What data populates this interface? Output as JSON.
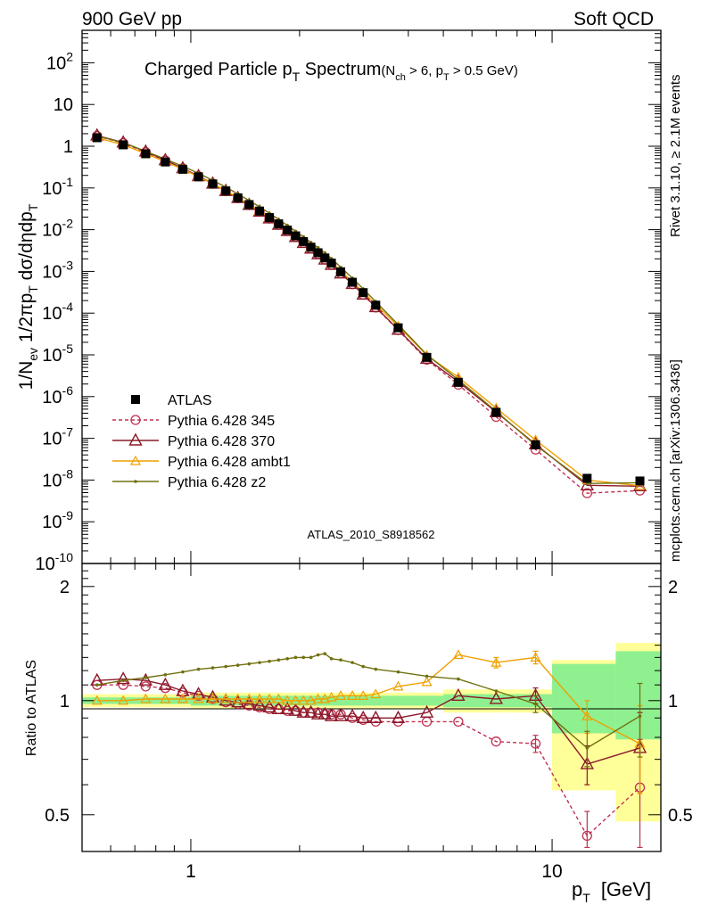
{
  "header": {
    "left": "900 GeV pp",
    "right": "Soft QCD"
  },
  "side_labels": {
    "rivet": "Rivet 3.1.10, ≥ 2.1M events",
    "source": "mcplots.cern.ch [arXiv:1306.3436]"
  },
  "main": {
    "title": {
      "part1": "Charged Particle p",
      "sub1": "T",
      "part2": " Spectrum",
      "cut_a": "(N",
      "cut_sub_a": "ch",
      "cut_b": " > 6, p",
      "cut_sub_b": "T",
      "cut_c": " > 0.5 GeV)"
    },
    "ylabel": {
      "a": "1/N",
      "sub_a": "ev",
      "b": " 1/2πp",
      "sub_b": "T",
      "c": " dσ/dηdp",
      "sub_c": "T"
    },
    "watermark": "ATLAS_2010_S8918562",
    "y_ticks": [
      {
        "exp": -10,
        "label": "10^-10"
      },
      {
        "exp": -9,
        "label": "10^-9"
      },
      {
        "exp": -8,
        "label": "10^-8"
      },
      {
        "exp": -7,
        "label": "10^-7"
      },
      {
        "exp": -6,
        "label": "10^-6"
      },
      {
        "exp": -5,
        "label": "10^-5"
      },
      {
        "exp": -4,
        "label": "10^-4"
      },
      {
        "exp": -3,
        "label": "10^-3"
      },
      {
        "exp": -2,
        "label": "10^-2"
      },
      {
        "exp": -1,
        "label": "10^-1"
      },
      {
        "exp": 0,
        "label": "1"
      },
      {
        "exp": 1,
        "label": "10"
      },
      {
        "exp": 2,
        "label": "10^2"
      }
    ]
  },
  "ratio": {
    "ylabel": "Ratio to ATLAS",
    "y_ticks": [
      "0.5",
      "1",
      "2"
    ]
  },
  "x_axis": {
    "label": "p",
    "label_sub": "T",
    "unit": "[GeV]",
    "ticks": [
      "1",
      "10"
    ]
  },
  "legend": [
    {
      "name": "ATLAS",
      "color": "#000000",
      "marker": "square"
    },
    {
      "name": "Pythia 6.428 345",
      "color": "#c03050",
      "marker": "circle",
      "dashed": true
    },
    {
      "name": "Pythia 6.428 370",
      "color": "#8b1a2a",
      "marker": "triangle"
    },
    {
      "name": "Pythia 6.428 ambt1",
      "color": "#f0a000",
      "marker": "triangle-small"
    },
    {
      "name": "Pythia 6.428 z2",
      "color": "#707010",
      "marker": "dot"
    }
  ],
  "chart_data": {
    "type": "line",
    "xscale": "log",
    "xlim": [
      0.5,
      20
    ],
    "main_ylim": [
      1e-10,
      600
    ],
    "ratio_ylim": [
      0.4,
      2.3
    ],
    "x": [
      0.55,
      0.65,
      0.75,
      0.85,
      0.95,
      1.05,
      1.15,
      1.25,
      1.35,
      1.45,
      1.55,
      1.65,
      1.75,
      1.85,
      1.95,
      2.05,
      2.15,
      2.25,
      2.35,
      2.45,
      2.6,
      2.8,
      3.0,
      3.25,
      3.75,
      4.5,
      5.5,
      7.0,
      9.0,
      12.5,
      17.5
    ],
    "atlas": {
      "values": [
        1.6,
        1.08,
        0.66,
        0.42,
        0.28,
        0.185,
        0.125,
        0.085,
        0.058,
        0.04,
        0.028,
        0.0195,
        0.0138,
        0.0098,
        0.0071,
        0.0052,
        0.0038,
        0.0028,
        0.0021,
        0.00158,
        0.00098,
        0.00055,
        0.00031,
        0.000155,
        4.45e-05,
        8.7e-06,
        2.2e-06,
        4.2e-07,
        7e-08,
        1.1e-08,
        9.5e-09
      ],
      "band_bins": [
        0.5,
        1.0,
        5.0,
        7.5,
        10,
        15,
        20
      ],
      "band_green": [
        [
          0.98,
          1.02
        ],
        [
          0.97,
          1.03
        ],
        [
          0.96,
          1.04
        ],
        [
          0.96,
          1.04
        ],
        [
          0.82,
          1.25
        ],
        [
          0.79,
          1.35
        ]
      ],
      "band_yellow": [
        [
          0.96,
          1.04
        ],
        [
          0.95,
          1.05
        ],
        [
          0.93,
          1.07
        ],
        [
          0.93,
          1.07
        ],
        [
          0.58,
          1.28
        ],
        [
          0.48,
          1.42
        ]
      ]
    },
    "series": [
      {
        "name": "Pythia 6.428 345",
        "ratio": [
          1.1,
          1.1,
          1.09,
          1.08,
          1.05,
          1.03,
          1.01,
          0.99,
          0.98,
          0.97,
          0.96,
          0.95,
          0.95,
          0.94,
          0.94,
          0.93,
          0.93,
          0.93,
          0.92,
          0.92,
          0.92,
          0.9,
          0.89,
          0.88,
          0.88,
          0.88,
          0.88,
          0.78,
          0.77,
          0.44,
          0.59
        ],
        "ratio_err": [
          0,
          0,
          0,
          0,
          0,
          0,
          0,
          0,
          0,
          0,
          0,
          0,
          0,
          0,
          0,
          0,
          0,
          0,
          0,
          0,
          0,
          0,
          0,
          0,
          0,
          0,
          0,
          0,
          0.04,
          0.07,
          0.2
        ]
      },
      {
        "name": "Pythia 6.428 370",
        "ratio": [
          1.13,
          1.14,
          1.13,
          1.1,
          1.06,
          1.04,
          1.02,
          1.0,
          0.99,
          0.98,
          0.97,
          0.96,
          0.95,
          0.95,
          0.94,
          0.93,
          0.93,
          0.92,
          0.92,
          0.91,
          0.91,
          0.91,
          0.9,
          0.9,
          0.9,
          0.93,
          1.03,
          1.01,
          1.03,
          0.68,
          0.75
        ],
        "ratio_err": [
          0,
          0,
          0,
          0,
          0,
          0,
          0,
          0,
          0,
          0,
          0,
          0,
          0,
          0,
          0,
          0,
          0,
          0,
          0,
          0,
          0,
          0,
          0,
          0,
          0,
          0,
          0,
          0,
          0.05,
          0.08,
          0.18
        ]
      },
      {
        "name": "Pythia 6.428 ambt1",
        "ratio": [
          1.0,
          1.0,
          1.01,
          1.01,
          1.01,
          1.01,
          1.01,
          1.01,
          1.01,
          1.01,
          1.01,
          1.01,
          1.01,
          1.0,
          1.0,
          1.0,
          1.0,
          1.01,
          1.01,
          1.02,
          1.03,
          1.03,
          1.03,
          1.04,
          1.09,
          1.12,
          1.32,
          1.26,
          1.3,
          0.91,
          0.77
        ],
        "ratio_err": [
          0,
          0,
          0,
          0,
          0,
          0,
          0,
          0,
          0,
          0,
          0,
          0,
          0,
          0,
          0,
          0,
          0,
          0,
          0,
          0,
          0,
          0,
          0,
          0,
          0,
          0,
          0,
          0.04,
          0.05,
          0.09,
          0.2
        ]
      },
      {
        "name": "Pythia 6.428 z2",
        "ratio": [
          1.1,
          1.13,
          1.15,
          1.17,
          1.19,
          1.21,
          1.22,
          1.23,
          1.24,
          1.25,
          1.26,
          1.27,
          1.28,
          1.29,
          1.3,
          1.3,
          1.3,
          1.32,
          1.33,
          1.29,
          1.28,
          1.26,
          1.23,
          1.21,
          1.19,
          1.16,
          1.14,
          1.06,
          0.98,
          0.75,
          0.91
        ],
        "ratio_err": [
          0,
          0,
          0,
          0,
          0,
          0,
          0,
          0,
          0,
          0,
          0,
          0,
          0,
          0,
          0,
          0,
          0,
          0,
          0,
          0,
          0,
          0,
          0,
          0,
          0,
          0,
          0,
          0,
          0.05,
          0.08,
          0.2
        ]
      }
    ]
  }
}
